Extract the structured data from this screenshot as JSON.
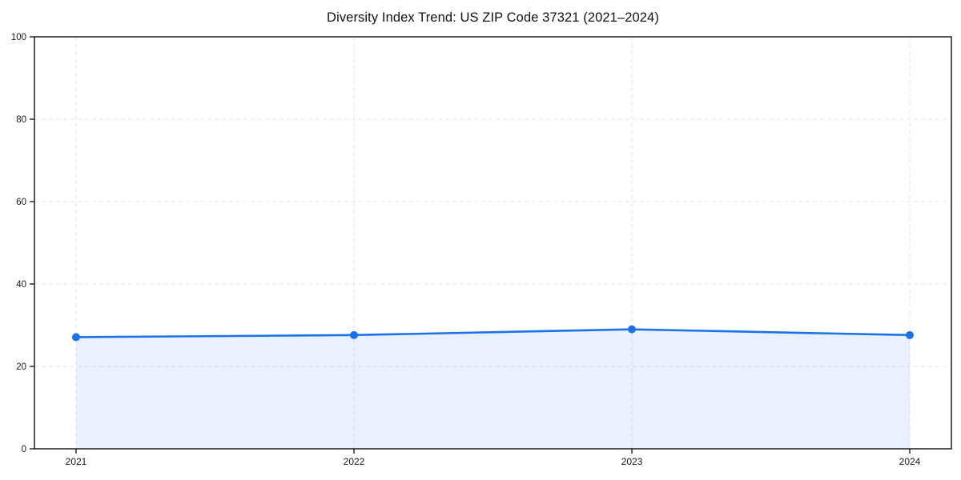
{
  "chart_data": {
    "type": "area",
    "title": "Diversity Index Trend: US ZIP Code 37321 (2021–2024)",
    "series_name": "Diversity Index",
    "categories": [
      "2021",
      "2022",
      "2023",
      "2024"
    ],
    "values": [
      27.1,
      27.6,
      29.0,
      27.6
    ],
    "xlabel": "",
    "ylabel": "",
    "ylim": [
      0,
      100
    ],
    "yticks": [
      0,
      20,
      40,
      60,
      80,
      100
    ],
    "grid": "dashed",
    "legend_position": "none",
    "markers": true,
    "colors": {
      "line": "#1a73e8",
      "marker": "#1a73e8",
      "area_fill": "rgba(26,115,232,0.10)",
      "grid": "#e6e6e6",
      "spine": "#0d0d0d",
      "tick_label": "#1a1a1a",
      "title": "#111111",
      "background": "#ffffff"
    }
  }
}
